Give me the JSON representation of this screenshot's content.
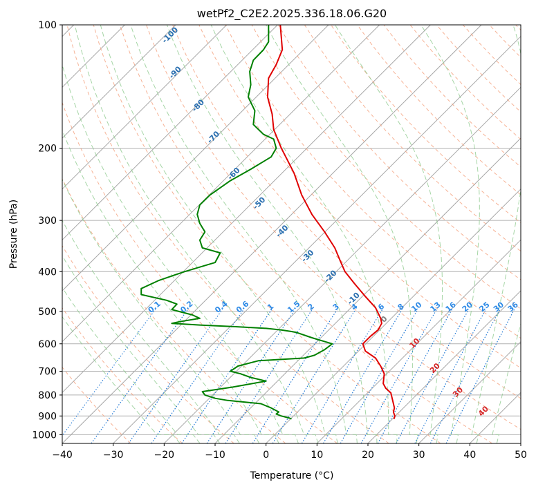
{
  "chart_data": {
    "type": "line",
    "title": "wetPf2_C2E2.2025.336.18.06.G20",
    "xlabel": "Temperature (°C)",
    "ylabel": "Pressure (hPa)",
    "xlim": [
      -40,
      50
    ],
    "ylim": [
      1050,
      100
    ],
    "y_scale": "log",
    "grid": true,
    "x_ticks": [
      "−40",
      "−30",
      "−20",
      "−10",
      "0",
      "10",
      "20",
      "30",
      "40",
      "50"
    ],
    "y_ticks": [
      "100",
      "200",
      "300",
      "400",
      "500",
      "600",
      "700",
      "800",
      "900",
      "1000"
    ],
    "series": [
      {
        "color": "#e00000",
        "points": [
          [
            2.8,
            100
          ],
          [
            3.2,
            115
          ],
          [
            2.0,
            125
          ],
          [
            0.5,
            135
          ],
          [
            0.3,
            150
          ],
          [
            1.2,
            165
          ],
          [
            1.5,
            180
          ],
          [
            3.0,
            200
          ],
          [
            5.5,
            230
          ],
          [
            7.0,
            260
          ],
          [
            9.0,
            290
          ],
          [
            11.5,
            320
          ],
          [
            13.5,
            350
          ],
          [
            14.5,
            375
          ],
          [
            15.5,
            400
          ],
          [
            17.5,
            430
          ],
          [
            19.5,
            460
          ],
          [
            21.5,
            490
          ],
          [
            22.5,
            520
          ],
          [
            22.7,
            535
          ],
          [
            22.0,
            555
          ],
          [
            20.5,
            575
          ],
          [
            19.0,
            600
          ],
          [
            19.5,
            625
          ],
          [
            21.5,
            650
          ],
          [
            22.5,
            680
          ],
          [
            23.2,
            710
          ],
          [
            23.0,
            750
          ],
          [
            23.5,
            770
          ],
          [
            24.5,
            790
          ],
          [
            24.8,
            820
          ],
          [
            25.2,
            860
          ],
          [
            25.0,
            880
          ],
          [
            25.3,
            900
          ],
          [
            25.1,
            915
          ]
        ]
      },
      {
        "color": "#008000",
        "points": [
          [
            0.5,
            100
          ],
          [
            0.5,
            110
          ],
          [
            -0.5,
            115
          ],
          [
            -2.5,
            122
          ],
          [
            -3.2,
            130
          ],
          [
            -3.0,
            140
          ],
          [
            -3.5,
            150
          ],
          [
            -2.2,
            162
          ],
          [
            -2.5,
            175
          ],
          [
            -0.5,
            185
          ],
          [
            1.5,
            190
          ],
          [
            2.0,
            200
          ],
          [
            1.0,
            210
          ],
          [
            -3.0,
            225
          ],
          [
            -7.0,
            240
          ],
          [
            -11.0,
            260
          ],
          [
            -13.0,
            275
          ],
          [
            -13.5,
            290
          ],
          [
            -13.0,
            305
          ],
          [
            -12.0,
            320
          ],
          [
            -13.0,
            335
          ],
          [
            -12.5,
            350
          ],
          [
            -9.0,
            360
          ],
          [
            -10.0,
            380
          ],
          [
            -16.0,
            400
          ],
          [
            -21.0,
            420
          ],
          [
            -24.5,
            440
          ],
          [
            -24.5,
            455
          ],
          [
            -19.5,
            470
          ],
          [
            -17.5,
            480
          ],
          [
            -18.5,
            495
          ],
          [
            -14.5,
            510
          ],
          [
            -13.0,
            520
          ],
          [
            -17.0,
            530
          ],
          [
            -18.5,
            535
          ],
          [
            -13.0,
            540
          ],
          [
            -6.0,
            545
          ],
          [
            0.0,
            550
          ],
          [
            3.0,
            555
          ],
          [
            5.0,
            560
          ],
          [
            6.0,
            563
          ],
          [
            9.0,
            580
          ],
          [
            13.0,
            600
          ],
          [
            11.5,
            620
          ],
          [
            9.5,
            640
          ],
          [
            7.5,
            650
          ],
          [
            -1.5,
            660
          ],
          [
            -5.5,
            680
          ],
          [
            -7.0,
            700
          ],
          [
            -5.0,
            710
          ],
          [
            -3.0,
            725
          ],
          [
            0.0,
            740
          ],
          [
            -6.5,
            765
          ],
          [
            -12.5,
            785
          ],
          [
            -12.0,
            800
          ],
          [
            -10.0,
            815
          ],
          [
            -7.5,
            825
          ],
          [
            -1.0,
            840
          ],
          [
            1.0,
            860
          ],
          [
            2.5,
            880
          ],
          [
            2.0,
            890
          ],
          [
            3.0,
            900
          ],
          [
            4.5,
            910
          ],
          [
            5.0,
            915
          ]
        ]
      }
    ],
    "dry_adiabat_labels": [
      "-100",
      "-90",
      "-80",
      "-70",
      "-60",
      "-50",
      "-40",
      "-30",
      "-20",
      "-10",
      "0",
      "10",
      "20",
      "30",
      "40"
    ],
    "mixing_ratio_labels": [
      "0.1",
      "0.2",
      "0.4",
      "0.6",
      "1",
      "1.5",
      "2",
      "3",
      "4",
      "6",
      "8",
      "10",
      "13",
      "16",
      "20",
      "25",
      "30",
      "36"
    ],
    "colors": {
      "temperature": "#e00000",
      "dewpoint": "#008000",
      "dry_adiabat": "#f4a582",
      "moist_adiabat": "#8fca8f",
      "mixing_ratio": "#1f77d4",
      "isotherm": "#808080",
      "label_blue": "#2a6fb0",
      "label_red": "#d62728",
      "label_gray": "#7f7f7f"
    }
  }
}
